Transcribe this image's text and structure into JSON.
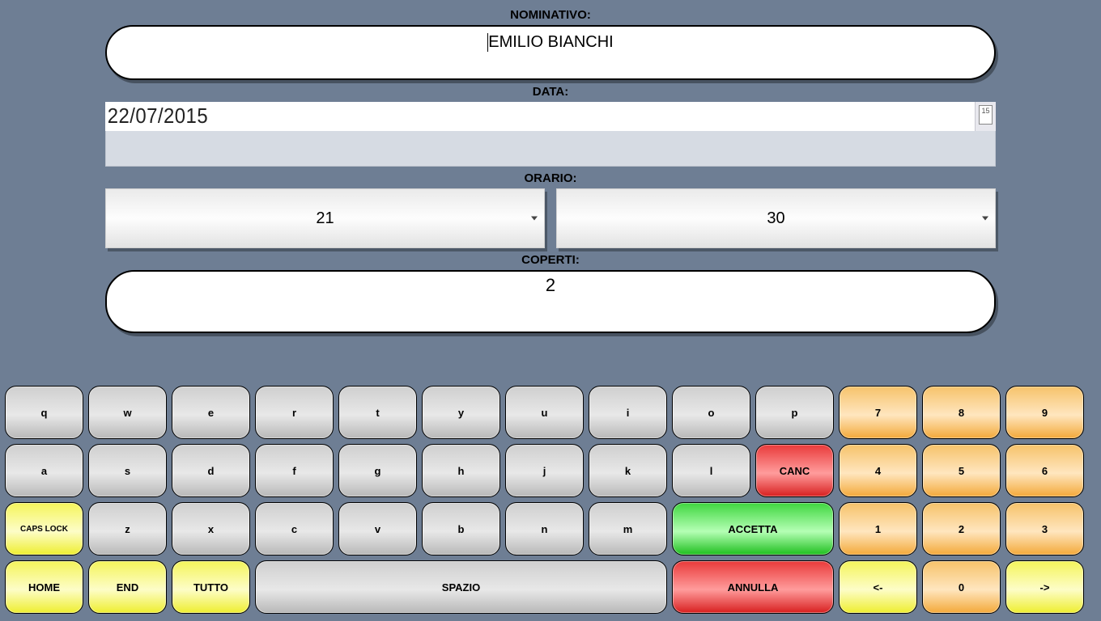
{
  "labels": {
    "nominativo": "NOMINATIVO:",
    "data": "DATA:",
    "orario": "ORARIO:",
    "coperti": "COPERTI:"
  },
  "fields": {
    "nominativo_value": "EMILIO BIANCHI",
    "data_value": "22/07/2015",
    "calendar_badge": "15",
    "orario_hour": "21",
    "orario_minute": "30",
    "coperti_value": "2"
  },
  "keyboard": {
    "row1_letters": [
      "q",
      "w",
      "e",
      "r",
      "t",
      "y",
      "u",
      "i",
      "o",
      "p"
    ],
    "row1_nums": [
      "7",
      "8",
      "9"
    ],
    "row2_letters": [
      "a",
      "s",
      "d",
      "f",
      "g",
      "h",
      "j",
      "k",
      "l"
    ],
    "row2_canc": "CANC",
    "row2_nums": [
      "4",
      "5",
      "6"
    ],
    "row3_caps": "CAPS LOCK",
    "row3_letters": [
      "z",
      "x",
      "c",
      "v",
      "b",
      "n",
      "m"
    ],
    "row3_accetta": "ACCETTA",
    "row3_nums": [
      "1",
      "2",
      "3"
    ],
    "row4_home": "HOME",
    "row4_end": "END",
    "row4_tutto": "TUTTO",
    "row4_spazio": "SPAZIO",
    "row4_annulla": "ANNULLA",
    "row4_left": "<-",
    "row4_zero": "0",
    "row4_right": "->"
  },
  "colors": {
    "background": "#6e7e94",
    "key_gray": "#cfcfcf",
    "key_orange": "#f6c26a",
    "key_yellow": "#f4f45a",
    "key_red": "#e93a3a",
    "key_green": "#3fd63f"
  }
}
